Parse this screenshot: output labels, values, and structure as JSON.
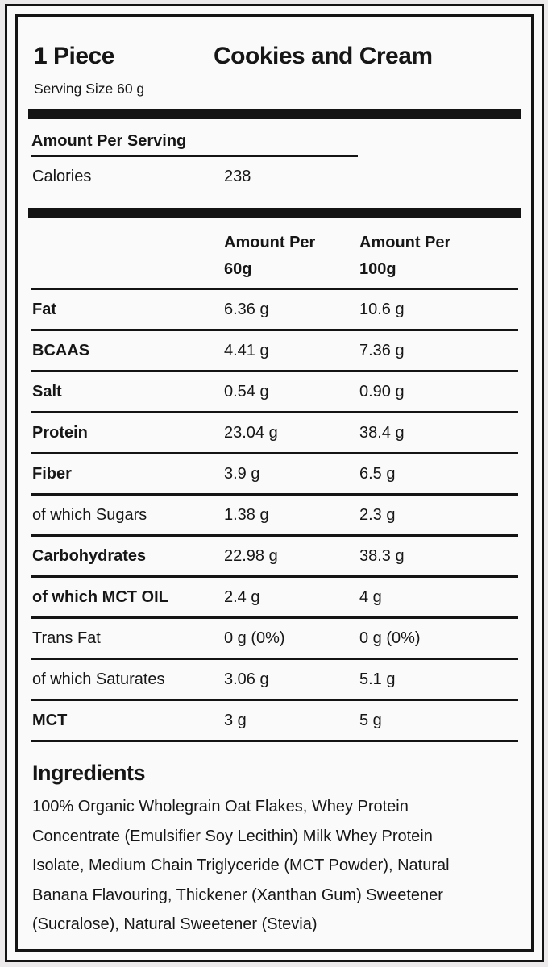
{
  "header": {
    "serving_count": "1 Piece",
    "flavor": "Cookies and Cream",
    "serving_size": "Serving Size 60 g"
  },
  "per_serving": {
    "heading": "Amount Per Serving",
    "calories_label": "Calories",
    "calories_value": "238"
  },
  "table": {
    "col1": {
      "line1": "Amount Per",
      "line2": "60g"
    },
    "col2": {
      "line1": "Amount Per",
      "line2": "100g"
    },
    "rows": [
      {
        "label": "Fat",
        "per60": "6.36 g",
        "per100": "10.6 g"
      },
      {
        "label": "BCAAS",
        "per60": "4.41 g",
        "per100": "7.36 g"
      },
      {
        "label": "Salt",
        "per60": "0.54 g",
        "per100": "0.90 g"
      },
      {
        "label": "Protein",
        "per60": "23.04 g",
        "per100": "38.4 g"
      },
      {
        "label": "Fiber",
        "per60": "3.9 g",
        "per100": "6.5 g"
      },
      {
        "label": "of which Sugars",
        "per60": "1.38 g",
        "per100": "2.3 g"
      },
      {
        "label": "Carbohydrates",
        "per60": "22.98 g",
        "per100": "38.3 g"
      },
      {
        "label": "of which MCT OIL",
        "per60": "2.4 g",
        "per100": "4 g"
      },
      {
        "label": "Trans Fat",
        "per60": "0 g (0%)",
        "per100": "0 g (0%)"
      },
      {
        "label": "of which Saturates",
        "per60": "3.06 g",
        "per100": "5.1 g"
      },
      {
        "label": "MCT",
        "per60": "3 g",
        "per100": "5 g"
      }
    ]
  },
  "ingredients": {
    "heading": "Ingredients",
    "lines": [
      "100% Organic Wholegrain Oat Flakes, Whey Protein",
      "Concentrate (Emulsifier Soy Lecithin) Milk Whey Protein",
      "Isolate, Medium Chain Triglyceride (MCT Powder), Natural",
      "Banana Flavouring, Thickener (Xanthan Gum) Sweetener",
      "(Sucralose), Natural Sweetener (Stevia)"
    ]
  },
  "colors": {
    "text": "#161616",
    "rule": "#141414",
    "background": "#fbfafa"
  }
}
